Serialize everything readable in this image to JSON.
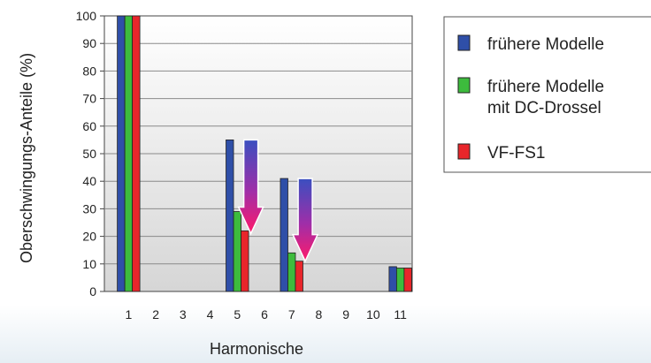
{
  "chart_data": {
    "type": "bar",
    "xlabel": "Harmonische",
    "ylabel": "Oberschwingungs-Anteile (%)",
    "ylim": [
      0,
      100
    ],
    "yticks": [
      0,
      10,
      20,
      30,
      40,
      50,
      60,
      70,
      80,
      90,
      100
    ],
    "categories": [
      "1",
      "2",
      "3",
      "4",
      "5",
      "6",
      "7",
      "8",
      "9",
      "10",
      "11"
    ],
    "grid": true,
    "legend_position": "right",
    "series": [
      {
        "name": "frühere Modelle",
        "color": "#2f4fa8",
        "values": [
          100,
          0,
          0,
          0,
          55,
          0,
          41,
          0,
          0,
          0,
          9
        ]
      },
      {
        "name": "frühere Modelle\nmit DC-Drossel",
        "color": "#3dbb3d",
        "values": [
          100,
          0,
          0,
          0,
          29,
          0,
          14,
          0,
          0,
          0,
          8.5
        ]
      },
      {
        "name": "VF-FS1",
        "color": "#e8262b",
        "values": [
          100,
          0,
          0,
          0,
          22,
          0,
          11,
          0,
          0,
          0,
          8.5
        ]
      }
    ],
    "annotations": [
      {
        "type": "arrow",
        "from_value": 55,
        "to_value": 21,
        "category_position": 5.5
      },
      {
        "type": "arrow",
        "from_value": 41,
        "to_value": 11,
        "category_position": 7.5
      }
    ]
  }
}
